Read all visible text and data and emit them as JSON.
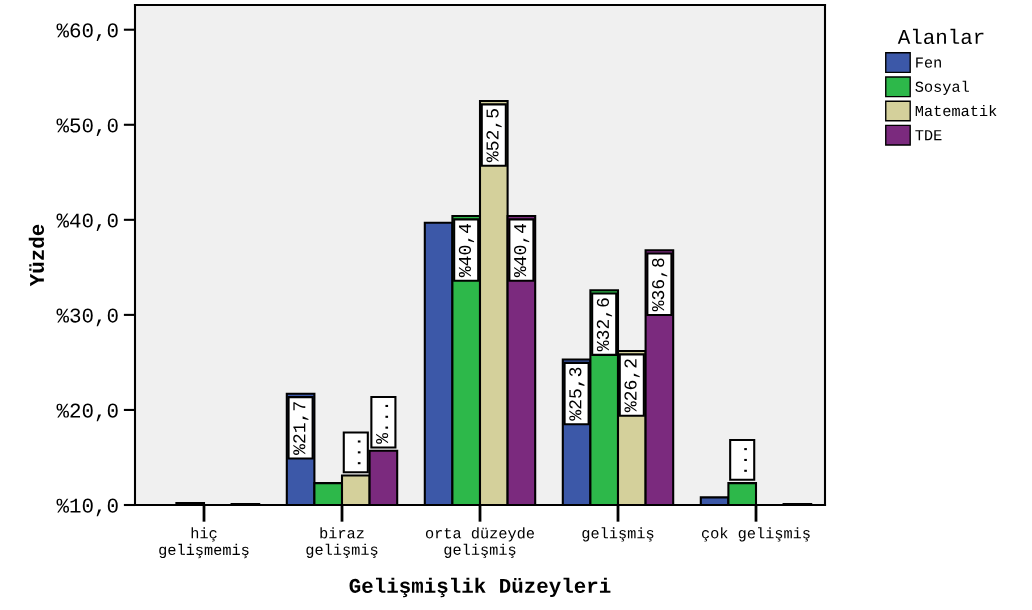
{
  "chart_data": {
    "type": "bar",
    "xlabel": "Gelişmişlik Düzeyleri",
    "ylabel": "Yüzde",
    "legend_title": "Alanlar",
    "legend": "right",
    "categories": [
      "hiç\ngelişmemiş",
      "biraz\ngelişmiş",
      "orta düzeyde\ngelişmiş",
      "gelişmiş",
      "çok gelişmiş"
    ],
    "series": [
      {
        "name": "Fen",
        "color": "#3c58a8",
        "values": [
          null,
          21.7,
          39.7,
          25.3,
          10.8
        ],
        "value_labels": [
          null,
          "%21,7",
          null,
          "%25,3",
          null
        ]
      },
      {
        "name": "Sosyal",
        "color": "#2db84a",
        "values": [
          10.2,
          12.3,
          40.4,
          32.6,
          12.3
        ],
        "value_labels": [
          null,
          null,
          "%40,4",
          "%32,6",
          "..."
        ]
      },
      {
        "name": "Matematik",
        "color": "#d4d09b",
        "values": [
          null,
          13.1,
          52.5,
          26.2,
          null
        ],
        "value_labels": [
          null,
          "...",
          "%52,5",
          "%26,2",
          null
        ]
      },
      {
        "name": "TDE",
        "color": "#7b2a7e",
        "values": [
          10.1,
          15.7,
          40.4,
          36.8,
          10.1
        ],
        "value_labels": [
          null,
          "%...",
          "%40,4",
          "%36,8",
          null
        ]
      }
    ],
    "ylim": [
      10,
      62.6
    ],
    "yticks": [
      {
        "value": 10,
        "label": "%10,0"
      },
      {
        "value": 20,
        "label": "%20,0"
      },
      {
        "value": 30,
        "label": "%30,0"
      },
      {
        "value": 40,
        "label": "%40,0"
      },
      {
        "value": 50,
        "label": "%50,0"
      },
      {
        "value": 60,
        "label": "%60,0"
      }
    ],
    "grid": false
  }
}
